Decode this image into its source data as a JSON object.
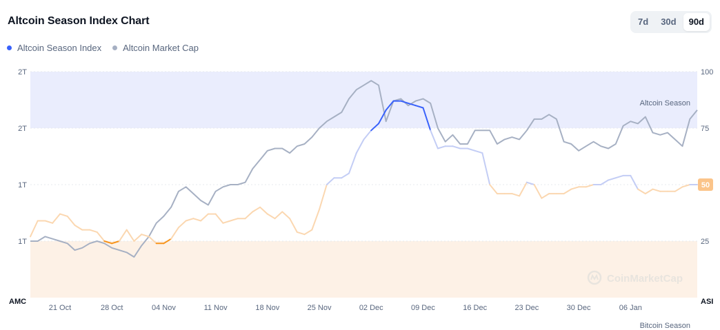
{
  "header": {
    "title": "Altcoin Season Index Chart",
    "ranges": [
      "7d",
      "30d",
      "90d"
    ],
    "active_range": "90d"
  },
  "colors": {
    "index_line": "#3861fb",
    "market_cap_line": "#a6b0c3",
    "altcoin_zone": "#eaedfd",
    "bitcoin_zone": "#fdf1e6",
    "neutral_line": "#fbd7b0",
    "bitcoin_line": "#f7931a"
  },
  "watermark": "CoinMarketCap",
  "chart_data": {
    "type": "line",
    "title": "Altcoin Season Index Chart",
    "x_labels": [
      "21 Oct",
      "28 Oct",
      "04 Nov",
      "11 Nov",
      "18 Nov",
      "25 Nov",
      "02 Dec",
      "09 Dec",
      "16 Dec",
      "23 Dec",
      "30 Dec",
      "06 Jan"
    ],
    "x_start": "17 Oct",
    "x_end": "13 Jan",
    "left_axis": {
      "name": "AMC",
      "ticks": [
        "2T",
        "2T",
        "1T",
        "1T"
      ]
    },
    "right_axis": {
      "name": "ASI",
      "ticks": [
        "100",
        "75",
        "50",
        "25"
      ],
      "range": [
        0,
        100
      ]
    },
    "zones": [
      {
        "name": "Altcoin Season",
        "from": 75,
        "to": 100
      },
      {
        "name": "Bitcoin Season",
        "from": 0,
        "to": 25
      }
    ],
    "current_value": "50",
    "series": [
      {
        "name": "Altcoin Season Index",
        "axis": "right",
        "values": [
          27,
          34,
          34,
          33,
          37,
          36,
          32,
          30,
          30,
          29,
          25,
          24,
          25,
          30,
          25,
          28,
          27,
          24,
          24,
          26,
          31,
          34,
          35,
          34,
          37,
          37,
          33,
          34,
          35,
          35,
          38,
          40,
          37,
          35,
          38,
          35,
          29,
          28,
          30,
          39,
          50,
          53,
          53,
          55,
          64,
          70,
          74,
          77,
          83,
          87,
          87,
          86,
          85,
          84,
          74,
          66,
          67,
          67,
          66,
          66,
          65,
          64,
          50,
          46,
          46,
          46,
          45,
          51,
          50,
          44,
          46,
          46,
          46,
          48,
          49,
          49,
          50,
          50,
          52,
          53,
          54,
          54,
          48,
          46,
          48,
          47,
          47,
          47,
          49,
          50,
          50
        ]
      },
      {
        "name": "Altcoin Market Cap",
        "axis": "right",
        "values": [
          25,
          25,
          27,
          26,
          25,
          24,
          21,
          22,
          24,
          25,
          24,
          22,
          21,
          20,
          18,
          23,
          27,
          33,
          36,
          40,
          47,
          49,
          46,
          43,
          41,
          47,
          49,
          50,
          50,
          51,
          57,
          61,
          65,
          66,
          66,
          64,
          67,
          68,
          71,
          75,
          78,
          80,
          82,
          88,
          92,
          94,
          96,
          94,
          78,
          87,
          88,
          85,
          87,
          88,
          86,
          75,
          69,
          72,
          68,
          68,
          74,
          74,
          74,
          68,
          70,
          71,
          70,
          74,
          79,
          79,
          81,
          79,
          69,
          68,
          65,
          67,
          69,
          67,
          66,
          68,
          76,
          78,
          77,
          80,
          73,
          72,
          73,
          70,
          67,
          79,
          83
        ]
      }
    ]
  }
}
